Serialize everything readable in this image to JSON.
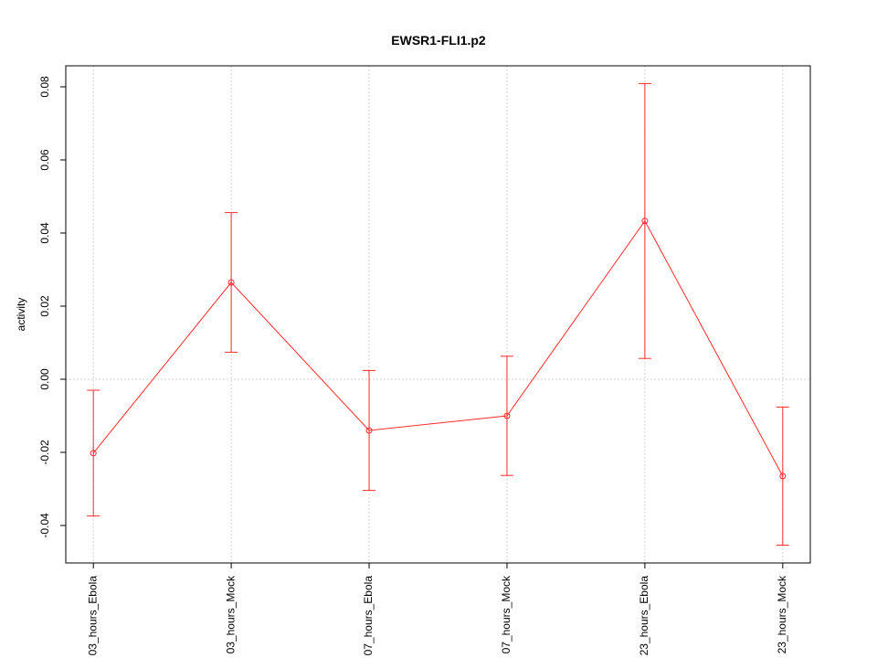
{
  "chart_data": {
    "type": "errorline",
    "title": "EWSR1-FLI1.p2",
    "y_label": "activity",
    "categories": [
      "03_hours_Ebola",
      "03_hours_Mock",
      "07_hours_Ebola",
      "07_hours_Mock",
      "23_hours_Ebola",
      "23_hours_Mock"
    ],
    "values": [
      -0.0202,
      0.0265,
      -0.014,
      -0.01,
      0.0433,
      -0.0265
    ],
    "errors": [
      0.0172,
      0.0191,
      0.0164,
      0.0163,
      0.0376,
      0.0189
    ],
    "color": "#ff2a2a",
    "xlim": [
      0.8,
      6.2
    ],
    "ylim": [
      -0.05025,
      0.08575
    ],
    "yticks": [
      -0.04,
      -0.02,
      {
        "value": 0,
        "label": "0.00"
      },
      0.02,
      0.04,
      0.06,
      0.08
    ],
    "grid": true
  }
}
